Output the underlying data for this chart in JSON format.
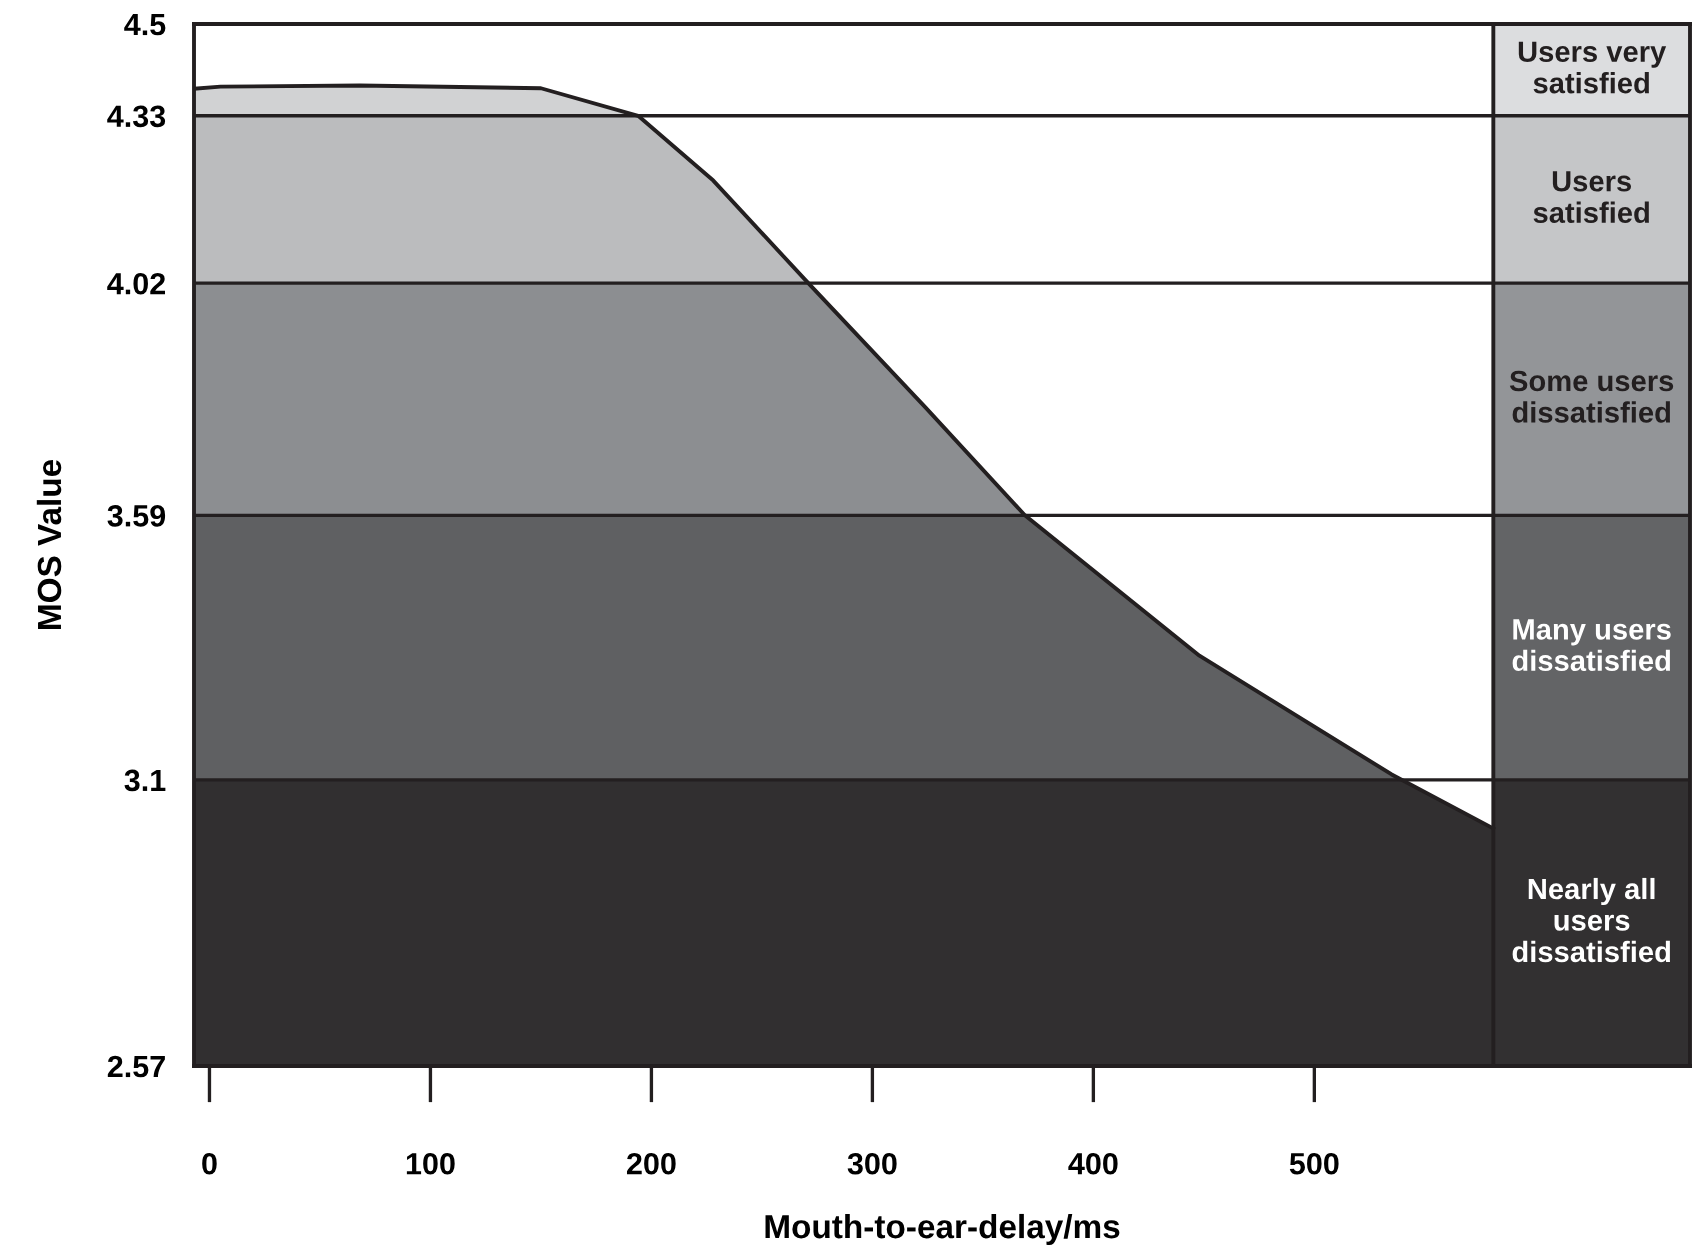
{
  "chart_data": {
    "type": "area",
    "xlabel": "Mouth-to-ear-delay/ms",
    "ylabel": "MOS Value",
    "xlim": [
      -7,
      670
    ],
    "xticks": [
      0,
      100,
      200,
      300,
      400,
      500
    ],
    "ylim": [
      2.57,
      4.5
    ],
    "yticks": [
      2.57,
      3.1,
      3.59,
      4.02,
      4.33,
      4.5
    ],
    "grid": "y",
    "legend": false,
    "ref_lines": [
      {
        "axis": "x",
        "value": 581,
        "color": "#231f20"
      }
    ],
    "series": [
      {
        "color": "#231f20",
        "x": [
          -7,
          5,
          68,
          150,
          194,
          228,
          271,
          324,
          369,
          448,
          535,
          581
        ],
        "values": [
          4.38,
          4.384,
          4.386,
          4.381,
          4.33,
          4.21,
          4.02,
          3.79,
          3.59,
          3.33,
          3.11,
          3.01
        ]
      }
    ],
    "bands": [
      {
        "axis": "y",
        "from": 4.33,
        "to": 4.5,
        "label": "Users very\nsatisfied",
        "color": "#dcdddf"
      },
      {
        "axis": "y",
        "from": 4.02,
        "to": 4.33,
        "label": "Users\nsatisfied",
        "color": "#c5c6c8"
      },
      {
        "axis": "y",
        "from": 3.59,
        "to": 4.02,
        "label": "Some users\ndissatisfied",
        "color": "#939598"
      },
      {
        "axis": "y",
        "from": 3.1,
        "to": 3.59,
        "label": "Many users\ndissatisfied",
        "color": "#636466"
      },
      {
        "axis": "y",
        "from": 2.57,
        "to": 3.1,
        "label": "Nearly all\nusers\ndissatisfied",
        "color": "#323031"
      }
    ]
  }
}
